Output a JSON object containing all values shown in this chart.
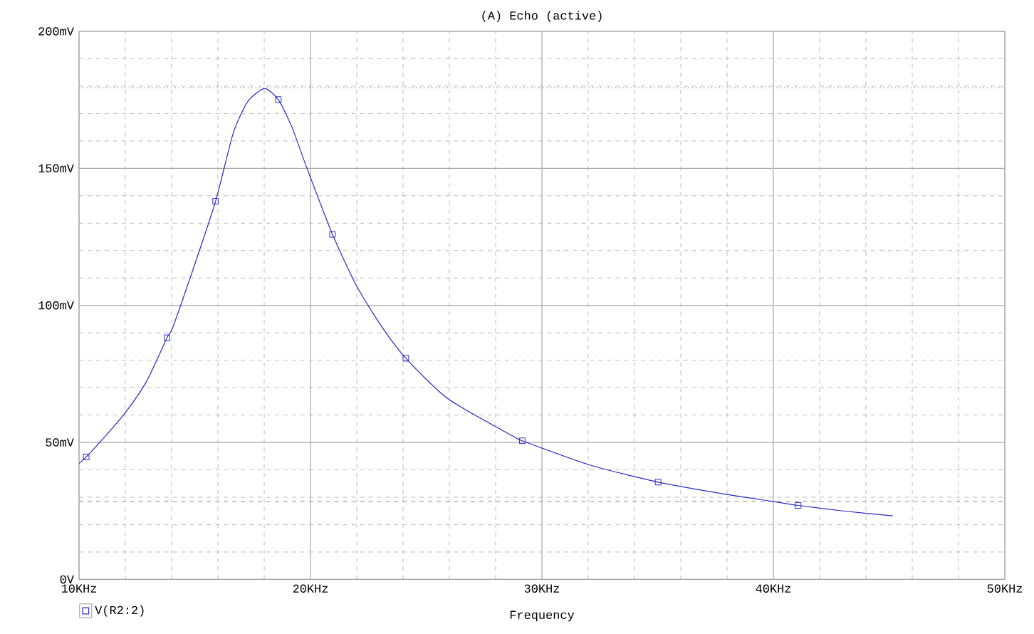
{
  "chart_data": {
    "type": "line",
    "title": "(A) Echo (active)",
    "xlabel": "Frequency",
    "xlim": [
      10,
      50
    ],
    "xticks": [
      {
        "value": 10,
        "label": "10KHz"
      },
      {
        "value": 20,
        "label": "20KHz"
      },
      {
        "value": 30,
        "label": "30KHz"
      },
      {
        "value": 40,
        "label": "40KHz"
      },
      {
        "value": 50,
        "label": "50KHz"
      }
    ],
    "ylim": [
      0,
      200
    ],
    "yticks": [
      {
        "value": 0,
        "label": "0V"
      },
      {
        "value": 50,
        "label": "50mV"
      },
      {
        "value": 100,
        "label": "100mV"
      },
      {
        "value": 150,
        "label": "150mV"
      },
      {
        "value": 200,
        "label": "200mV"
      }
    ],
    "grid": true,
    "legend": "bottom left",
    "series": [
      {
        "name": "V(R2:2)",
        "color": "#2a2ac8",
        "marker": "none",
        "x": [
          10.0,
          10.31,
          11.0,
          11.93,
          12.9,
          13.8,
          14.06,
          15.0,
          15.9,
          16.66,
          17.3,
          18.01,
          18.61,
          19.2,
          19.85,
          20.95,
          22.0,
          23.08,
          24.12,
          25.96,
          28.83,
          29.15,
          32.02,
          35.02,
          38.0,
          40.03,
          41.07,
          43.0,
          45.16
        ],
        "values": [
          42.3,
          44.7,
          51,
          60.1,
          72,
          88.2,
          92.2,
          115,
          138.0,
          162.8,
          174.5,
          179.1,
          175.1,
          165,
          150,
          125.9,
          107,
          92.2,
          80.7,
          65.8,
          51.9,
          50.6,
          41.9,
          35.5,
          31,
          28.4,
          27.0,
          25,
          23.2
        ]
      },
      {
        "type": "scatter",
        "color": "#2a2ac8",
        "marker": "square",
        "x": [
          10.31,
          13.8,
          15.9,
          18.61,
          20.95,
          24.12,
          29.15,
          35.02,
          41.07
        ],
        "values": [
          44.7,
          88.2,
          138.0,
          175.1,
          125.9,
          80.7,
          50.6,
          35.5,
          27.0
        ]
      }
    ],
    "ref_lines": [
      {
        "axis": "y",
        "value": 179.4,
        "color": "#a0a0a0",
        "line_style": "dotted"
      },
      {
        "axis": "x",
        "value": 40.0,
        "color": "#c8c8c8",
        "line_style": "solid"
      },
      {
        "axis": "y",
        "value": 28.4,
        "color": "#a0a0a0",
        "line_style": "dashed"
      }
    ]
  }
}
